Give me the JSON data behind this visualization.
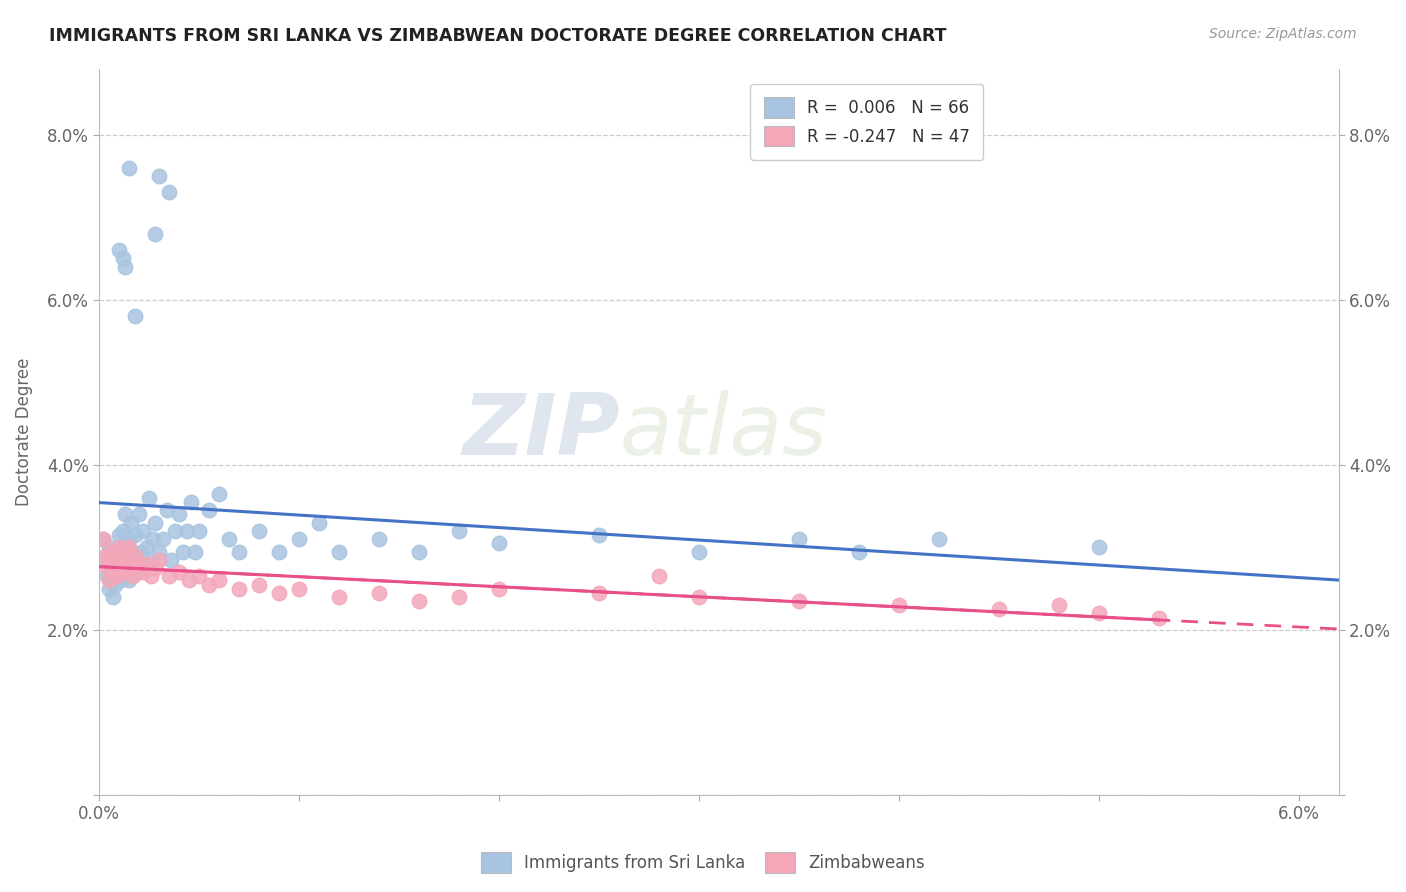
{
  "title": "IMMIGRANTS FROM SRI LANKA VS ZIMBABWEAN DOCTORATE DEGREE CORRELATION CHART",
  "source_text": "Source: ZipAtlas.com",
  "ylabel": "Doctorate Degree",
  "xlim": [
    0.0,
    0.062
  ],
  "ylim": [
    0.0,
    0.088
  ],
  "xtick_vals": [
    0.0,
    0.01,
    0.02,
    0.03,
    0.04,
    0.05,
    0.06
  ],
  "xticklabels": [
    "0.0%",
    "",
    "",
    "",
    "",
    "",
    "6.0%"
  ],
  "ytick_vals": [
    0.0,
    0.02,
    0.04,
    0.06,
    0.08
  ],
  "yticklabels": [
    "",
    "2.0%",
    "4.0%",
    "6.0%",
    "8.0%"
  ],
  "sri_lanka_fill": "#a8c4e0",
  "zimbabwe_fill": "#f4a7b9",
  "sri_lanka_line": "#4472c4",
  "zimbabwe_line": "#e8508a",
  "watermark_zip": "ZIP",
  "watermark_atlas": "atlas",
  "leg_sri": "R =  0.006   N = 66",
  "leg_zim": "R = -0.247   N = 47",
  "leg_label_sri": "Immigrants from Sri Lanka",
  "leg_label_zim": "Zimbabweans",
  "sri_x": [
    0.0002,
    0.0003,
    0.0004,
    0.0005,
    0.0005,
    0.0006,
    0.0007,
    0.0008,
    0.0008,
    0.0009,
    0.001,
    0.001,
    0.0011,
    0.0011,
    0.0012,
    0.0012,
    0.0013,
    0.0013,
    0.0014,
    0.0015,
    0.0015,
    0.0016,
    0.0016,
    0.0017,
    0.0018,
    0.0019,
    0.002,
    0.0021,
    0.0022,
    0.0023,
    0.0024,
    0.0025,
    0.0026,
    0.0027,
    0.0028,
    0.003,
    0.0032,
    0.0034,
    0.0036,
    0.0038,
    0.004,
    0.0042,
    0.0044,
    0.0046,
    0.0048,
    0.005,
    0.0055,
    0.006,
    0.0065,
    0.007,
    0.008,
    0.009,
    0.01,
    0.011,
    0.012,
    0.014,
    0.016,
    0.018,
    0.02,
    0.025,
    0.03,
    0.035,
    0.038,
    0.042,
    0.05,
    0.0015
  ],
  "sri_y": [
    0.031,
    0.0285,
    0.0265,
    0.025,
    0.03,
    0.027,
    0.024,
    0.0255,
    0.029,
    0.0275,
    0.0315,
    0.0285,
    0.0295,
    0.026,
    0.032,
    0.0275,
    0.0305,
    0.034,
    0.028,
    0.031,
    0.026,
    0.0295,
    0.033,
    0.0285,
    0.0315,
    0.027,
    0.034,
    0.0295,
    0.032,
    0.0275,
    0.03,
    0.036,
    0.0285,
    0.031,
    0.033,
    0.0295,
    0.031,
    0.0345,
    0.0285,
    0.032,
    0.034,
    0.0295,
    0.032,
    0.0355,
    0.0295,
    0.032,
    0.0345,
    0.0365,
    0.031,
    0.0295,
    0.032,
    0.0295,
    0.031,
    0.033,
    0.0295,
    0.031,
    0.0295,
    0.032,
    0.0305,
    0.0315,
    0.0295,
    0.031,
    0.0295,
    0.031,
    0.03,
    0.076
  ],
  "sri_outliers_x": [
    0.003,
    0.0035,
    0.0028,
    0.001,
    0.0012,
    0.0013,
    0.0018
  ],
  "sri_outliers_y": [
    0.075,
    0.073,
    0.068,
    0.066,
    0.065,
    0.064,
    0.058
  ],
  "zim_x": [
    0.0002,
    0.0003,
    0.0004,
    0.0005,
    0.0006,
    0.0007,
    0.0008,
    0.0009,
    0.001,
    0.0011,
    0.0012,
    0.0013,
    0.0014,
    0.0015,
    0.0016,
    0.0017,
    0.0018,
    0.002,
    0.0022,
    0.0024,
    0.0026,
    0.0028,
    0.003,
    0.0035,
    0.004,
    0.0045,
    0.005,
    0.0055,
    0.006,
    0.007,
    0.008,
    0.009,
    0.01,
    0.012,
    0.014,
    0.016,
    0.018,
    0.02,
    0.025,
    0.03,
    0.035,
    0.04,
    0.045,
    0.05,
    0.053,
    0.028,
    0.048
  ],
  "zim_y": [
    0.031,
    0.029,
    0.0275,
    0.026,
    0.0295,
    0.0275,
    0.0285,
    0.0265,
    0.03,
    0.028,
    0.0295,
    0.027,
    0.0285,
    0.03,
    0.0275,
    0.0265,
    0.029,
    0.028,
    0.027,
    0.028,
    0.0265,
    0.0275,
    0.0285,
    0.0265,
    0.027,
    0.026,
    0.0265,
    0.0255,
    0.026,
    0.025,
    0.0255,
    0.0245,
    0.025,
    0.024,
    0.0245,
    0.0235,
    0.024,
    0.025,
    0.0245,
    0.024,
    0.0235,
    0.023,
    0.0225,
    0.022,
    0.0215,
    0.0265,
    0.023
  ]
}
